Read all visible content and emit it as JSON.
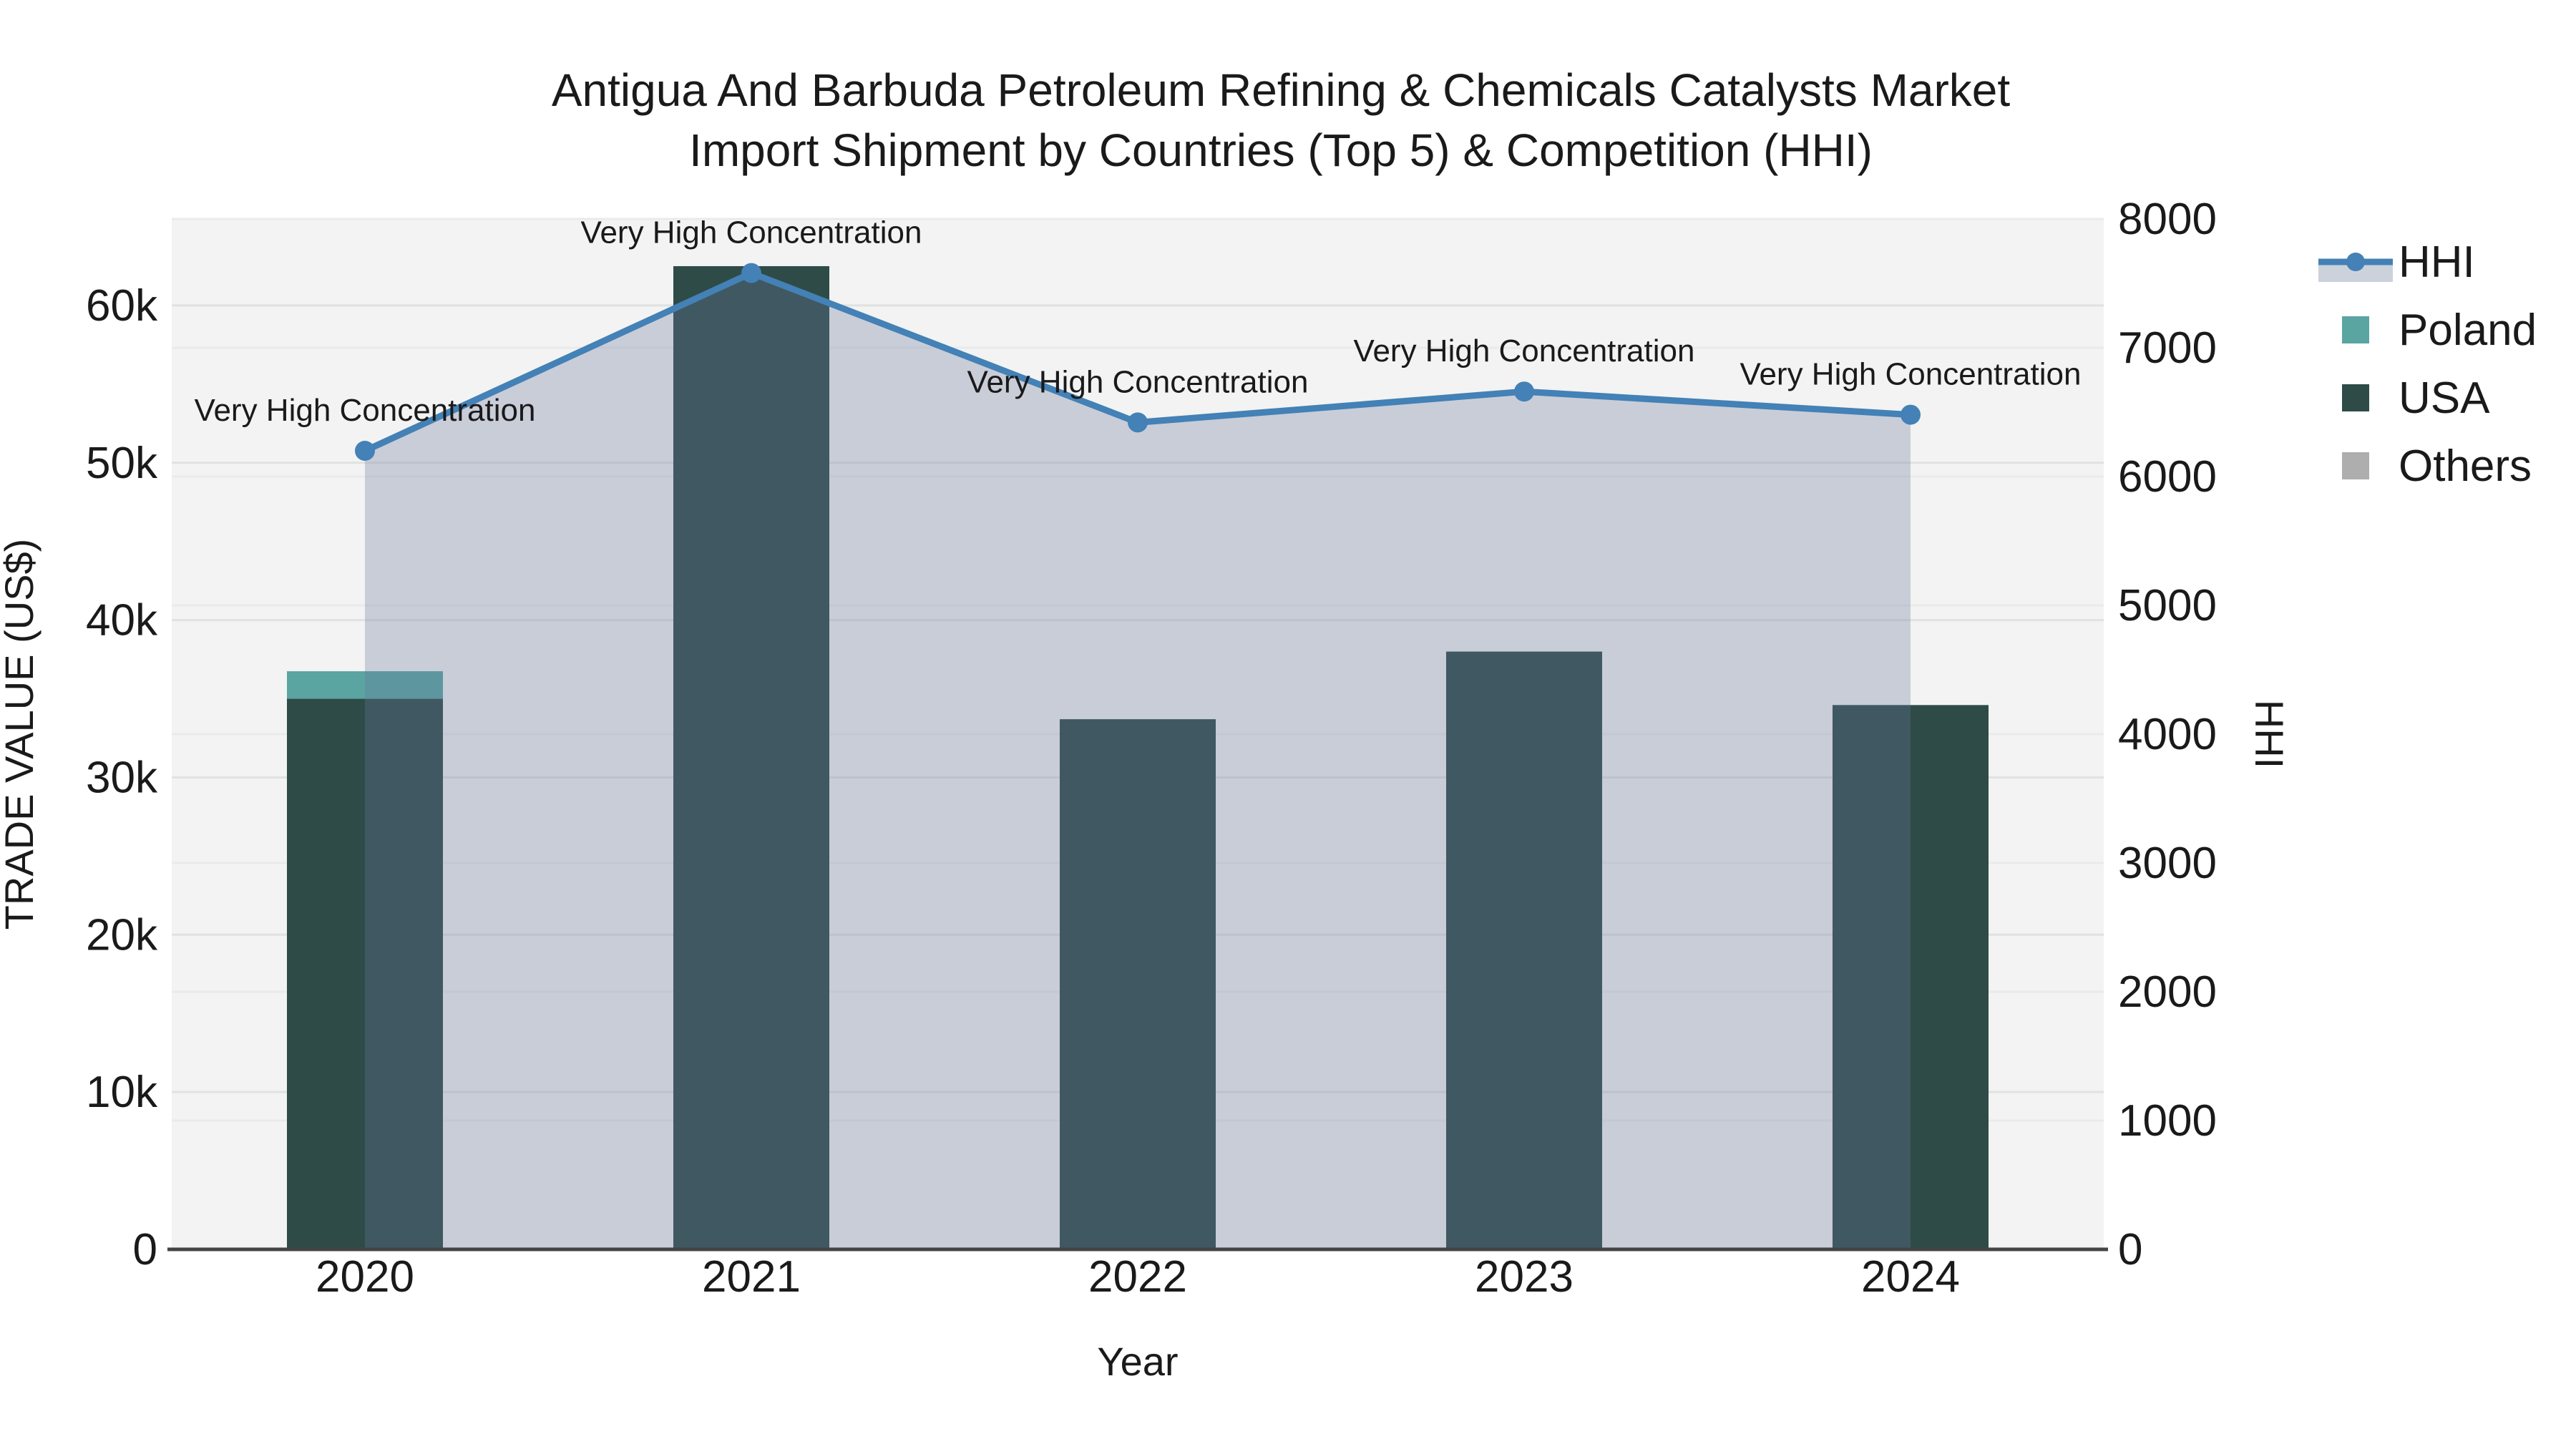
{
  "title": {
    "line1": "Antigua And Barbuda Petroleum Refining & Chemicals Catalysts Market",
    "line2": "Import Shipment by Countries (Top 5) & Competition (HHI)"
  },
  "chart_data": {
    "type": "composite",
    "subtype": "stacked-bar-with-line-area",
    "x_categories": [
      "2020",
      "2021",
      "2022",
      "2023",
      "2024"
    ],
    "bar_series": [
      {
        "name": "Poland",
        "color": "#5aa4a2",
        "values": [
          1750,
          0,
          0,
          0,
          0
        ]
      },
      {
        "name": "USA",
        "color": "#2e4b48",
        "values": [
          35000,
          62500,
          33700,
          38000,
          34600
        ]
      },
      {
        "name": "Others",
        "color": "#aeaeae",
        "values": [
          0,
          0,
          0,
          0,
          0
        ]
      }
    ],
    "stack_bottom_to_top": [
      "USA",
      "Poland",
      "Others"
    ],
    "line_series": {
      "name": "HHI",
      "color": "#4381b6",
      "fill_color": "rgba(105,120,155,0.30)",
      "values": [
        6200,
        7580,
        6420,
        6660,
        6480
      ]
    },
    "annotations": [
      "Very High Concentration",
      "Very High Concentration",
      "Very High Concentration",
      "Very High Concentration",
      "Very High Concentration"
    ],
    "axes": {
      "x": {
        "title": "Year"
      },
      "y_left": {
        "title": "TRADE VALUE (US$)",
        "tick_labels": [
          "0",
          "10k",
          "20k",
          "30k",
          "40k",
          "50k",
          "60k"
        ],
        "tick_values": [
          0,
          10000,
          20000,
          30000,
          40000,
          50000,
          60000
        ],
        "max": 65500
      },
      "y_right": {
        "title": "HHI",
        "tick_labels": [
          "0",
          "1000",
          "2000",
          "3000",
          "4000",
          "5000",
          "6000",
          "7000",
          "8000"
        ],
        "tick_values": [
          0,
          1000,
          2000,
          3000,
          4000,
          5000,
          6000,
          7000,
          8000
        ],
        "max": 8000
      }
    },
    "legend": [
      {
        "label": "HHI",
        "type": "line"
      },
      {
        "label": "Poland",
        "type": "square",
        "color": "#5aa4a2"
      },
      {
        "label": "USA",
        "type": "square",
        "color": "#2e4b48"
      },
      {
        "label": "Others",
        "type": "square",
        "color": "#aeaeae"
      }
    ],
    "style": {
      "plot_bg": "#f2f3f2",
      "grid_left": "#e0e2e2",
      "grid_right": "#e9ebeb",
      "axis_line": "#444444",
      "legend_fill_band": "#ccd2dc"
    }
  }
}
